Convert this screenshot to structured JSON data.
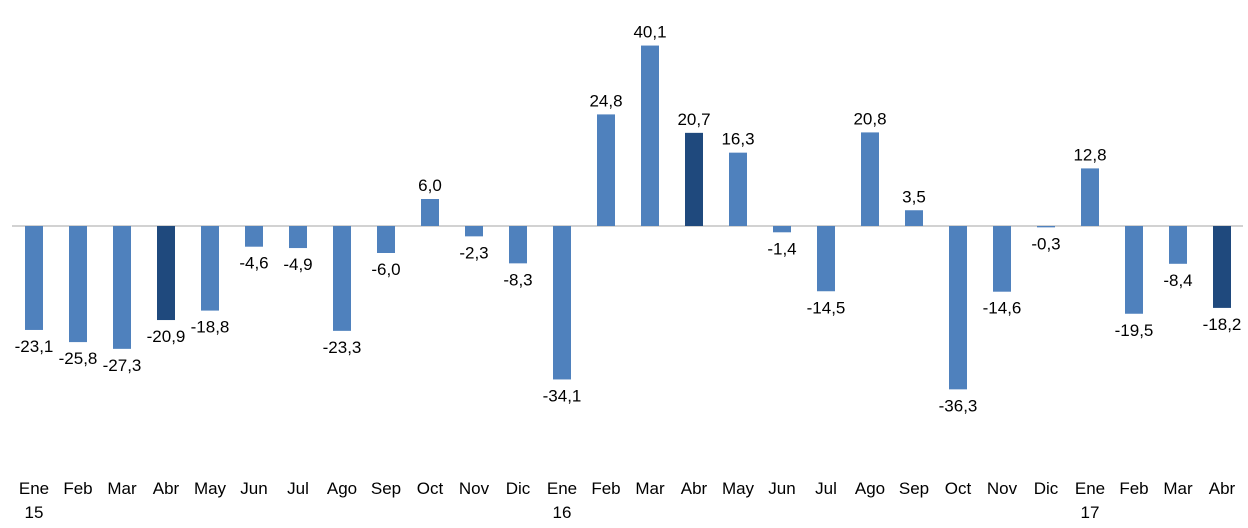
{
  "chart_data": {
    "type": "bar",
    "categories": [
      "Ene\n15",
      "Feb",
      "Mar",
      "Abr",
      "May",
      "Jun",
      "Jul",
      "Ago",
      "Sep",
      "Oct",
      "Nov",
      "Dic",
      "Ene\n16",
      "Feb",
      "Mar",
      "Abr",
      "May",
      "Jun",
      "Jul",
      "Ago",
      "Sep",
      "Oct",
      "Nov",
      "Dic",
      "Ene\n17",
      "Feb",
      "Mar",
      "Abr"
    ],
    "values": [
      -23.1,
      -25.8,
      -27.3,
      -20.9,
      -18.8,
      -4.6,
      -4.9,
      -23.3,
      -6.0,
      6.0,
      -2.3,
      -8.3,
      -34.1,
      24.8,
      40.1,
      20.7,
      16.3,
      -1.4,
      -14.5,
      20.8,
      3.5,
      -36.3,
      -14.6,
      -0.3,
      12.8,
      -19.5,
      -8.4,
      -18.2
    ],
    "value_labels": [
      "-23,1",
      "-25,8",
      "-27,3",
      "-20,9",
      "-18,8",
      "-4,6",
      "-4,9",
      "-23,3",
      "-6,0",
      "6,0",
      "-2,3",
      "-8,3",
      "-34,1",
      "24,8",
      "40,1",
      "20,7",
      "16,3",
      "-1,4",
      "-14,5",
      "20,8",
      "3,5",
      "-36,3",
      "-14,6",
      "-0,3",
      "12,8",
      "-19,5",
      "-8,4",
      "-18,2"
    ],
    "colors": [
      "#4f81bd",
      "#4f81bd",
      "#4f81bd",
      "#1f497d",
      "#4f81bd",
      "#4f81bd",
      "#4f81bd",
      "#4f81bd",
      "#4f81bd",
      "#4f81bd",
      "#4f81bd",
      "#4f81bd",
      "#4f81bd",
      "#4f81bd",
      "#4f81bd",
      "#1f497d",
      "#4f81bd",
      "#4f81bd",
      "#4f81bd",
      "#4f81bd",
      "#4f81bd",
      "#4f81bd",
      "#4f81bd",
      "#4f81bd",
      "#4f81bd",
      "#4f81bd",
      "#4f81bd",
      "#1f497d"
    ],
    "ylim": [
      -40,
      45
    ]
  }
}
